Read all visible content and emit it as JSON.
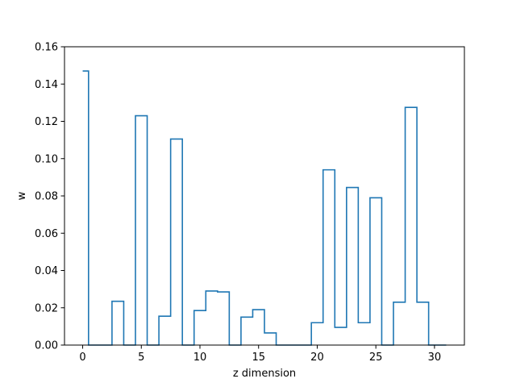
{
  "chart_data": {
    "type": "step",
    "title": "",
    "xlabel": "z dimension",
    "ylabel": "w",
    "xlim": [
      -1.55,
      32.55
    ],
    "ylim": [
      0.0,
      0.16
    ],
    "grid": false,
    "line_color": "#1f77b4",
    "x_ticks": [
      0,
      5,
      10,
      15,
      20,
      25,
      30
    ],
    "x_tick_labels": [
      "0",
      "5",
      "10",
      "15",
      "20",
      "25",
      "30"
    ],
    "y_ticks": [
      0.0,
      0.02,
      0.04,
      0.06,
      0.08,
      0.1,
      0.12,
      0.14,
      0.16
    ],
    "y_tick_labels": [
      "0.00",
      "0.02",
      "0.04",
      "0.06",
      "0.08",
      "0.10",
      "0.12",
      "0.14",
      "0.16"
    ],
    "x": [
      0,
      1,
      2,
      3,
      4,
      5,
      6,
      7,
      8,
      9,
      10,
      11,
      12,
      13,
      14,
      15,
      16,
      17,
      18,
      19,
      20,
      21,
      22,
      23,
      24,
      25,
      26,
      27,
      28,
      29,
      30,
      31
    ],
    "values": [
      0.147,
      0.0,
      0.0,
      0.0235,
      0.0,
      0.123,
      0.0,
      0.0155,
      0.1105,
      0.0,
      0.0185,
      0.029,
      0.0285,
      0.0,
      0.015,
      0.019,
      0.0065,
      0.0,
      0.0,
      0.0,
      0.012,
      0.094,
      0.0095,
      0.0845,
      0.012,
      0.079,
      0.0,
      0.023,
      0.1275,
      0.023,
      0.0,
      0.0
    ]
  }
}
